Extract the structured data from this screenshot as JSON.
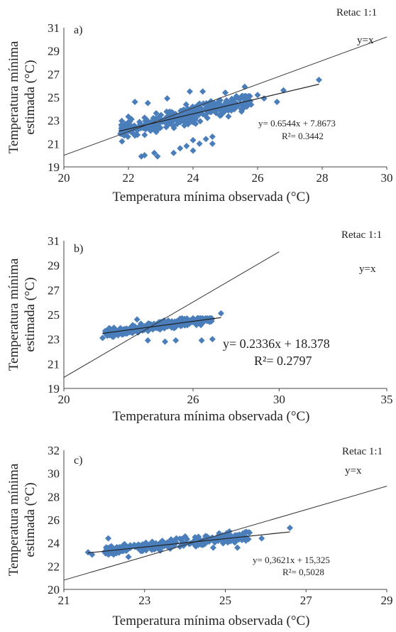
{
  "chart_data": [
    {
      "type": "scatter",
      "panel_label": "a)",
      "xlabel": "Temperatura mínima observada (°C)",
      "ylabel_lines": [
        "Temperatura mínima",
        "estimada (°C)"
      ],
      "xlim": [
        20,
        30
      ],
      "ylim": [
        19,
        31
      ],
      "xticks": [
        "20",
        "22",
        "24",
        "26",
        "28",
        "30"
      ],
      "yticks": [
        "19",
        "21",
        "23",
        "25",
        "27",
        "29",
        "31"
      ],
      "identity_line_label": "y=x",
      "identity_title": "Retac 1:1",
      "regression": {
        "slope": 0.6544,
        "intercept": 7.8673,
        "x_range": [
          21.7,
          27.9
        ]
      },
      "equation": "y= 0.6544x + 7.8673",
      "r2": "R²= 0.3442",
      "cluster": {
        "x_range": [
          21.7,
          25.8
        ],
        "y_range": [
          21.6,
          25.1
        ],
        "count": 320,
        "spread": 0.75,
        "seed": 11
      },
      "extra_points": [
        [
          22.4,
          19.9
        ],
        [
          22.8,
          20.2
        ],
        [
          22.9,
          19.9
        ],
        [
          23.4,
          20.2
        ],
        [
          23.6,
          20.6
        ],
        [
          23.8,
          20.8
        ],
        [
          24.0,
          21.3
        ],
        [
          24.2,
          21.0
        ],
        [
          24.4,
          21.4
        ],
        [
          24.6,
          21.0
        ],
        [
          24.0,
          20.4
        ],
        [
          22.5,
          20.0
        ],
        [
          24.6,
          21.6
        ],
        [
          21.8,
          21.2
        ],
        [
          22.2,
          21.7
        ],
        [
          23.9,
          25.5
        ],
        [
          24.3,
          25.5
        ],
        [
          25.0,
          25.4
        ],
        [
          25.6,
          25.9
        ],
        [
          26.0,
          25.2
        ],
        [
          26.2,
          24.9
        ],
        [
          26.6,
          24.6
        ],
        [
          26.8,
          25.6
        ],
        [
          27.9,
          26.5
        ],
        [
          22.2,
          24.6
        ],
        [
          22.6,
          24.5
        ],
        [
          23.2,
          24.9
        ],
        [
          21.9,
          22.7
        ],
        [
          22.0,
          22.1
        ]
      ]
    },
    {
      "type": "scatter",
      "panel_label": "b)",
      "xlabel": "Temperatura mínima observada (°C)",
      "ylabel_lines": [
        "Temperatura mínima",
        "estimada (°C)"
      ],
      "xlim": [
        20,
        35
      ],
      "ylim": [
        19,
        31
      ],
      "xticks": [
        "20",
        "26",
        "30",
        "35"
      ],
      "ytick_values": [
        19,
        21,
        23,
        25,
        27,
        29,
        31
      ],
      "xtick_values": [
        20,
        26,
        30,
        35
      ],
      "yticks": [
        "19",
        "21",
        "23",
        "25",
        "27",
        "29",
        "31"
      ],
      "identity_line_label": "y=x",
      "identity_title": "Retac 1:1",
      "identity_segment": [
        [
          20,
          19.9
        ],
        [
          30,
          30.1
        ]
      ],
      "regression": {
        "slope": 0.2336,
        "intercept": 18.378,
        "x_range": [
          21.8,
          27.3
        ]
      },
      "equation": "y= 0.2336x + 18.378",
      "r2": "R²= 0.2797",
      "cluster": {
        "x_range": [
          21.9,
          26.9
        ],
        "y_range": [
          23.1,
          24.7
        ],
        "count": 260,
        "spread": 0.35,
        "seed": 23
      },
      "extra_points": [
        [
          21.8,
          23.1
        ],
        [
          22.1,
          23.6
        ],
        [
          23.9,
          22.9
        ],
        [
          24.7,
          22.8
        ],
        [
          25.2,
          22.9
        ],
        [
          26.4,
          22.9
        ],
        [
          26.9,
          23.0
        ],
        [
          27.3,
          25.1
        ],
        [
          26.0,
          24.7
        ],
        [
          23.4,
          24.6
        ]
      ]
    },
    {
      "type": "scatter",
      "panel_label": "c)",
      "xlabel": "Temperatura mínima observada (°C)",
      "ylabel_lines": [
        "Temperatura mínima",
        "estimada (°C)"
      ],
      "xlim": [
        21,
        29
      ],
      "ylim": [
        20,
        32
      ],
      "xticks": [
        "21",
        "23",
        "25",
        "27",
        "29"
      ],
      "yticks": [
        "20",
        "22",
        "24",
        "26",
        "28",
        "30",
        "32"
      ],
      "identity_line_label": "y=x",
      "identity_title": "Retac 1:1",
      "regression": {
        "slope": 0.3621,
        "intercept": 15.325,
        "x_range": [
          21.6,
          26.6
        ]
      },
      "equation": "y= 0,3621x + 15,325",
      "r2": "R²= 0,5028",
      "cluster": {
        "x_range": [
          22.0,
          25.6
        ],
        "y_range": [
          23.0,
          25.0
        ],
        "count": 260,
        "spread": 0.4,
        "seed": 37
      },
      "extra_points": [
        [
          21.6,
          23.2
        ],
        [
          21.7,
          23.0
        ],
        [
          22.1,
          24.4
        ],
        [
          25.6,
          24.9
        ],
        [
          25.9,
          24.4
        ],
        [
          26.6,
          25.3
        ],
        [
          24.7,
          23.6
        ],
        [
          25.3,
          23.6
        ],
        [
          25.1,
          25.0
        ],
        [
          22.6,
          22.8
        ]
      ]
    }
  ]
}
